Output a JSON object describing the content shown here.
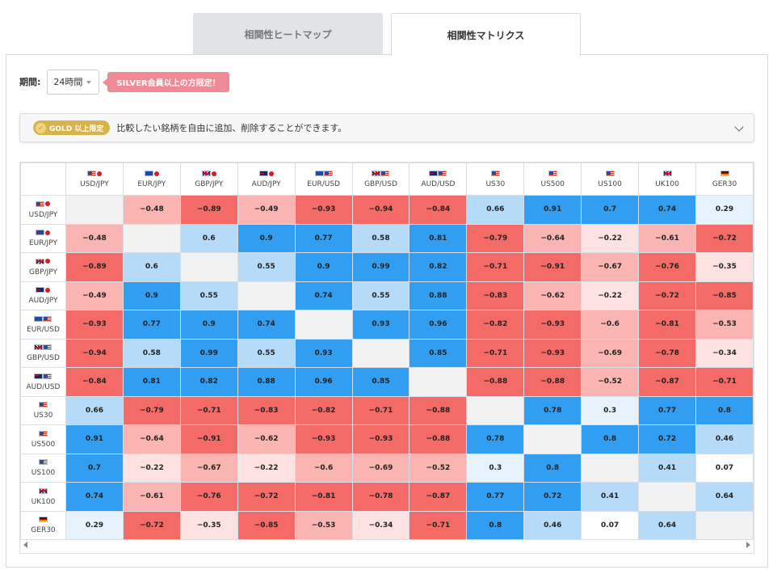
{
  "tabs": [
    {
      "label": "相関性ヒートマップ",
      "active": false
    },
    {
      "label": "相関性マトリクス",
      "active": true
    }
  ],
  "period": {
    "label": "期間:",
    "value": "24時間",
    "notice": "SILVER会員以上の方限定！"
  },
  "gold": {
    "badge": "GOLD 以上限定",
    "text": "比較したい銘柄を自由に追加、削除することができます。"
  },
  "colors": {
    "strong_pos": "#329ef2",
    "mid_pos": "#b6dbf8",
    "weak_pos": "#e6f3fc",
    "strong_neg": "#f36a67",
    "mid_neg": "#fab5b3",
    "weak_neg": "#fde2e1",
    "diagonal": "#f2f2f2"
  },
  "matrix": {
    "symbols": [
      {
        "label": "USD/JPY",
        "flags": [
          "us",
          "jp"
        ]
      },
      {
        "label": "EUR/JPY",
        "flags": [
          "eu",
          "jp"
        ]
      },
      {
        "label": "GBP/JPY",
        "flags": [
          "gb",
          "jp"
        ]
      },
      {
        "label": "AUD/JPY",
        "flags": [
          "au",
          "jp"
        ]
      },
      {
        "label": "EUR/USD",
        "flags": [
          "eu",
          "us"
        ]
      },
      {
        "label": "GBP/USD",
        "flags": [
          "gb",
          "us"
        ]
      },
      {
        "label": "AUD/USD",
        "flags": [
          "au",
          "us"
        ]
      },
      {
        "label": "US30",
        "flags": [
          "us"
        ]
      },
      {
        "label": "US500",
        "flags": [
          "us"
        ]
      },
      {
        "label": "US100",
        "flags": [
          "us"
        ]
      },
      {
        "label": "UK100",
        "flags": [
          "gb"
        ]
      },
      {
        "label": "GER30",
        "flags": [
          "de"
        ]
      }
    ],
    "values": [
      [
        null,
        -0.48,
        -0.89,
        -0.49,
        -0.93,
        -0.94,
        -0.84,
        0.66,
        0.91,
        0.7,
        0.74,
        0.29
      ],
      [
        -0.48,
        null,
        0.6,
        0.9,
        0.77,
        0.58,
        0.81,
        -0.79,
        -0.64,
        -0.22,
        -0.61,
        -0.72
      ],
      [
        -0.89,
        0.6,
        null,
        0.55,
        0.9,
        0.99,
        0.82,
        -0.71,
        -0.91,
        -0.67,
        -0.76,
        -0.35
      ],
      [
        -0.49,
        0.9,
        0.55,
        null,
        0.74,
        0.55,
        0.88,
        -0.83,
        -0.62,
        -0.22,
        -0.72,
        -0.85
      ],
      [
        -0.93,
        0.77,
        0.9,
        0.74,
        null,
        0.93,
        0.96,
        -0.82,
        -0.93,
        -0.6,
        -0.81,
        -0.53
      ],
      [
        -0.94,
        0.58,
        0.99,
        0.55,
        0.93,
        null,
        0.85,
        -0.71,
        -0.93,
        -0.69,
        -0.78,
        -0.34
      ],
      [
        -0.84,
        0.81,
        0.82,
        0.88,
        0.96,
        0.85,
        null,
        -0.88,
        -0.88,
        -0.52,
        -0.87,
        -0.71
      ],
      [
        0.66,
        -0.79,
        -0.71,
        -0.83,
        -0.82,
        -0.71,
        -0.88,
        null,
        0.78,
        0.3,
        0.77,
        0.8
      ],
      [
        0.91,
        -0.64,
        -0.91,
        -0.62,
        -0.93,
        -0.93,
        -0.88,
        0.78,
        null,
        0.8,
        0.72,
        0.46
      ],
      [
        0.7,
        -0.22,
        -0.67,
        -0.22,
        -0.6,
        -0.69,
        -0.52,
        0.3,
        0.8,
        null,
        0.41,
        0.07
      ],
      [
        0.74,
        -0.61,
        -0.76,
        -0.72,
        -0.81,
        -0.78,
        -0.87,
        0.77,
        0.72,
        0.41,
        null,
        0.64
      ],
      [
        0.29,
        -0.72,
        -0.35,
        -0.85,
        -0.53,
        -0.34,
        -0.71,
        0.8,
        0.46,
        0.07,
        0.64,
        null
      ]
    ],
    "display": [
      [
        "",
        "−0.48",
        "−0.89",
        "−0.49",
        "−0.93",
        "−0.94",
        "−0.84",
        "0.66",
        "0.91",
        "0.7",
        "0.74",
        "0.29"
      ],
      [
        "−0.48",
        "",
        "0.6",
        "0.9",
        "0.77",
        "0.58",
        "0.81",
        "−0.79",
        "−0.64",
        "−0.22",
        "−0.61",
        "−0.72"
      ],
      [
        "−0.89",
        "0.6",
        "",
        "0.55",
        "0.9",
        "0.99",
        "0.82",
        "−0.71",
        "−0.91",
        "−0.67",
        "−0.76",
        "−0.35"
      ],
      [
        "−0.49",
        "0.9",
        "0.55",
        "",
        "0.74",
        "0.55",
        "0.88",
        "−0.83",
        "−0.62",
        "−0.22",
        "−0.72",
        "−0.85"
      ],
      [
        "−0.93",
        "0.77",
        "0.9",
        "0.74",
        "",
        "0.93",
        "0.96",
        "−0.82",
        "−0.93",
        "−0.6",
        "−0.81",
        "−0.53"
      ],
      [
        "−0.94",
        "0.58",
        "0.99",
        "0.55",
        "0.93",
        "",
        "0.85",
        "−0.71",
        "−0.93",
        "−0.69",
        "−0.78",
        "−0.34"
      ],
      [
        "−0.84",
        "0.81",
        "0.82",
        "0.88",
        "0.96",
        "0.85",
        "",
        "−0.88",
        "−0.88",
        "−0.52",
        "−0.87",
        "−0.71"
      ],
      [
        "0.66",
        "−0.79",
        "−0.71",
        "−0.83",
        "−0.82",
        "−0.71",
        "−0.88",
        "",
        "0.78",
        "0.3",
        "0.77",
        "0.8"
      ],
      [
        "0.91",
        "−0.64",
        "−0.91",
        "−0.62",
        "−0.93",
        "−0.93",
        "−0.88",
        "0.78",
        "",
        "0.8",
        "0.72",
        "0.46"
      ],
      [
        "0.7",
        "−0.22",
        "−0.67",
        "−0.22",
        "−0.6",
        "−0.69",
        "−0.52",
        "0.3",
        "0.8",
        "",
        "0.41",
        "0.07"
      ],
      [
        "0.74",
        "−0.61",
        "−0.76",
        "−0.72",
        "−0.81",
        "−0.78",
        "−0.87",
        "0.77",
        "0.72",
        "0.41",
        "",
        "0.64"
      ],
      [
        "0.29",
        "−0.72",
        "−0.35",
        "−0.85",
        "−0.53",
        "−0.34",
        "−0.71",
        "0.8",
        "0.46",
        "0.07",
        "0.64",
        ""
      ]
    ]
  }
}
